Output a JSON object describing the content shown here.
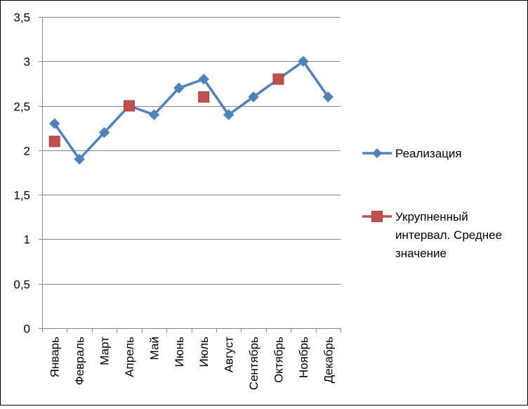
{
  "chart_data": {
    "type": "line",
    "categories": [
      "Январь",
      "Февраль",
      "Март",
      "Апрель",
      "Май",
      "Июнь",
      "Июль",
      "Август",
      "Сентябрь",
      "Октябрь",
      "Ноябрь",
      "Декабрь"
    ],
    "series": [
      {
        "name": "Реализация",
        "values": [
          2.3,
          1.9,
          2.2,
          2.5,
          2.4,
          2.7,
          2.8,
          2.4,
          2.6,
          2.8,
          3.0,
          2.6
        ],
        "color": "#4f81bd",
        "marker": "diamond",
        "line": true
      },
      {
        "name": "Укрупненный интервал. Среднее значение",
        "legend_lines": [
          "Укрупненный",
          "интервал. Среднее",
          "значение"
        ],
        "values": [
          2.1,
          null,
          null,
          2.5,
          null,
          null,
          2.6,
          null,
          null,
          2.8,
          null,
          null
        ],
        "color": "#c0504d",
        "marker": "square",
        "line": false
      }
    ],
    "y_ticks": [
      "0",
      "0,5",
      "1",
      "1,5",
      "2",
      "2,5",
      "3",
      "3,5"
    ],
    "ylim": [
      0,
      3.5
    ],
    "grid": true,
    "legend_position": "right"
  }
}
